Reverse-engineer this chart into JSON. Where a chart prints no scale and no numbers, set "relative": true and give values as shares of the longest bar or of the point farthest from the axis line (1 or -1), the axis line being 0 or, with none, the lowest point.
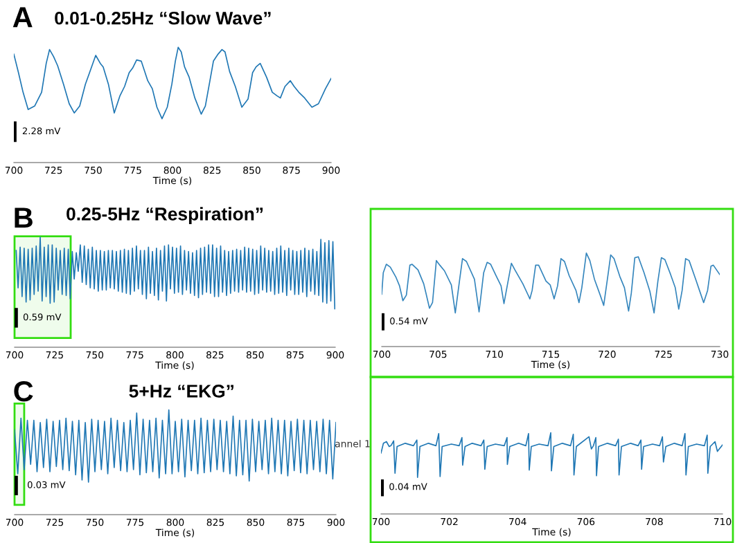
{
  "chart_data": [
    {
      "type": "line",
      "title": "0.01-0.25Hz “Slow Wave”",
      "xlabel": "Time (s)",
      "relative": true,
      "xlim": [
        700,
        900
      ],
      "xticks": [
        700,
        725,
        750,
        775,
        800,
        825,
        850,
        875,
        900
      ],
      "annotations": [
        "A",
        "2.28 mV"
      ],
      "x": [
        700,
        702.9,
        705.8,
        709.0,
        713.1,
        717.5,
        720.4,
        722.5,
        725.0,
        727.6,
        731.3,
        734.9,
        738.1,
        741.5,
        745.1,
        748.0,
        751.6,
        754.5,
        756.3,
        759.6,
        763.3,
        766.9,
        769.8,
        772.7,
        774.9,
        777.4,
        780.3,
        784.4,
        787.3,
        790.2,
        793.4,
        796.7,
        799.6,
        801.8,
        803.6,
        805.5,
        807.6,
        810.5,
        814.1,
        818.1,
        820.7,
        823.6,
        825.8,
        828.7,
        831.2,
        833.1,
        836.0,
        839.6,
        843.7,
        847.6,
        850.5,
        852.7,
        855.3,
        859.3,
        862.9,
        865.8,
        868.0,
        870.9,
        874.3,
        876.7,
        879.6,
        883.3,
        887.9,
        892.0,
        896.4,
        900
      ],
      "series": [
        {
          "color": "#1f77b4",
          "values": [
            0.94,
            0.78,
            0.61,
            0.46,
            0.49,
            0.61,
            0.86,
            0.98,
            0.92,
            0.84,
            0.68,
            0.51,
            0.43,
            0.49,
            0.68,
            0.79,
            0.93,
            0.86,
            0.83,
            0.68,
            0.43,
            0.58,
            0.66,
            0.78,
            0.82,
            0.89,
            0.88,
            0.71,
            0.64,
            0.48,
            0.38,
            0.48,
            0.68,
            0.88,
            1.0,
            0.96,
            0.83,
            0.74,
            0.56,
            0.42,
            0.49,
            0.71,
            0.88,
            0.94,
            0.98,
            0.96,
            0.79,
            0.66,
            0.48,
            0.55,
            0.78,
            0.83,
            0.86,
            0.74,
            0.61,
            0.58,
            0.56,
            0.66,
            0.71,
            0.66,
            0.61,
            0.56,
            0.48,
            0.51,
            0.64,
            0.73
          ]
        }
      ]
    },
    {
      "type": "line",
      "title": "0.25-5Hz “Respiration”",
      "xlabel": "Time (s)",
      "relative": true,
      "xlim": [
        700,
        900
      ],
      "xticks": [
        700,
        725,
        750,
        775,
        800,
        825,
        850,
        875,
        900
      ],
      "annotations": [
        "B",
        "0.59 mV"
      ],
      "bands": [
        {
          "axis": "x",
          "from": 700,
          "to": 735,
          "color": "#33dd11"
        }
      ],
      "x": [
        701,
        702.2,
        703.5,
        704.7,
        706,
        707.2,
        708.5,
        709.7,
        711,
        712.2,
        713.5,
        714.7,
        716,
        717.2,
        718.5,
        719.7,
        721,
        722.2,
        723.5,
        724.7,
        726,
        727.2,
        728.5,
        729.7,
        731,
        732.2,
        733.5,
        734.7,
        736,
        737.2,
        738.5,
        739.7,
        741,
        742.2,
        743.5,
        744.7,
        746,
        747.2,
        748.5,
        749.7,
        751,
        752.2,
        753.5,
        754.7,
        756,
        757.2,
        758.5,
        759.7,
        761,
        762.2,
        763.5,
        764.7,
        766,
        767.2,
        768.5,
        769.7,
        771,
        772.2,
        773.5,
        774.7,
        776,
        777.2,
        778.5,
        779.7,
        781,
        782.2,
        783.5,
        784.7,
        786,
        787.2,
        788.5,
        789.7,
        791,
        792.2,
        793.5,
        794.7,
        796,
        797.2,
        798.5,
        799.7,
        801,
        802.2,
        803.5,
        804.7,
        806,
        807.2,
        808.5,
        809.7,
        811,
        812.2,
        813.5,
        814.7,
        816,
        817.2,
        818.5,
        819.7,
        821,
        822.2,
        823.5,
        824.7,
        826,
        827.2,
        828.5,
        829.7,
        831,
        832.2,
        833.5,
        834.7,
        836,
        837.2,
        838.5,
        839.7,
        841,
        842.2,
        843.5,
        844.7,
        846,
        847.2,
        848.5,
        849.7,
        851,
        852.2,
        853.5,
        854.7,
        856,
        857.2,
        858.5,
        859.7,
        861,
        862.2,
        863.5,
        864.7,
        866,
        867.2,
        868.5,
        869.7,
        871,
        872.2,
        873.5,
        874.7,
        876,
        877.2,
        878.5,
        879.7,
        881,
        882.2,
        883.5,
        884.7,
        886,
        887.2,
        888.5,
        889.7,
        891,
        892.2,
        893.5,
        894.7,
        896,
        897.2,
        898.5,
        899.7
      ],
      "series": [
        {
          "color": "#1f77b4",
          "values": [
            0.88,
            0.54,
            0.91,
            0.46,
            0.9,
            0.41,
            0.89,
            0.43,
            0.9,
            0.48,
            0.92,
            0.51,
            1.0,
            0.42,
            0.91,
            0.46,
            0.93,
            0.4,
            0.93,
            0.41,
            0.9,
            0.52,
            0.88,
            0.48,
            0.9,
            0.47,
            0.89,
            0.44,
            0.87,
            0.62,
            0.86,
            0.69,
            0.93,
            0.59,
            0.92,
            0.57,
            0.89,
            0.54,
            0.91,
            0.53,
            0.88,
            0.51,
            0.88,
            0.52,
            0.87,
            0.52,
            0.88,
            0.54,
            0.88,
            0.53,
            0.87,
            0.51,
            0.88,
            0.5,
            0.89,
            0.49,
            0.88,
            0.48,
            0.9,
            0.51,
            0.92,
            0.53,
            0.88,
            0.48,
            0.88,
            0.44,
            0.91,
            0.49,
            0.87,
            0.47,
            0.9,
            0.43,
            0.88,
            0.51,
            0.92,
            0.42,
            0.93,
            0.53,
            0.91,
            0.49,
            0.9,
            0.5,
            0.92,
            0.48,
            0.88,
            0.52,
            0.87,
            0.49,
            0.86,
            0.47,
            0.88,
            0.45,
            0.9,
            0.48,
            0.91,
            0.5,
            0.93,
            0.49,
            0.93,
            0.46,
            0.9,
            0.46,
            0.92,
            0.5,
            0.88,
            0.47,
            0.87,
            0.49,
            0.88,
            0.51,
            0.89,
            0.5,
            0.88,
            0.52,
            0.91,
            0.5,
            0.9,
            0.51,
            0.89,
            0.48,
            0.88,
            0.49,
            0.92,
            0.52,
            0.9,
            0.5,
            0.88,
            0.51,
            0.87,
            0.48,
            0.9,
            0.49,
            0.92,
            0.5,
            0.88,
            0.47,
            0.9,
            0.52,
            0.88,
            0.48,
            0.87,
            0.48,
            0.88,
            0.5,
            0.9,
            0.46,
            0.88,
            0.51,
            0.89,
            0.48,
            0.87,
            0.47,
            0.98,
            0.41,
            0.95,
            0.4,
            0.97,
            0.42,
            0.96,
            0.35
          ]
        }
      ]
    },
    {
      "type": "line",
      "xlabel": "Time (s)",
      "relative": true,
      "xlim": [
        700,
        730
      ],
      "xticks": [
        700,
        705,
        710,
        715,
        720,
        725,
        730
      ],
      "annotations": [
        "0.54 mV"
      ],
      "x": [
        700.0,
        700.14,
        700.41,
        700.76,
        701.27,
        701.58,
        701.88,
        702.19,
        702.5,
        702.7,
        703.22,
        703.73,
        703.93,
        704.24,
        704.51,
        704.85,
        705.16,
        705.57,
        706.18,
        706.53,
        706.9,
        707.17,
        707.52,
        708.23,
        708.64,
        709.05,
        709.36,
        709.67,
        710.18,
        710.59,
        710.85,
        711.14,
        711.51,
        711.82,
        712.53,
        713.15,
        713.35,
        713.66,
        713.93,
        714.58,
        714.95,
        715.3,
        715.61,
        715.91,
        716.22,
        716.63,
        717.24,
        717.51,
        717.76,
        718.16,
        718.47,
        718.88,
        719.39,
        719.7,
        720.11,
        720.32,
        720.62,
        721.13,
        721.54,
        721.91,
        722.15,
        722.46,
        722.77,
        723.28,
        723.8,
        724.17,
        724.51,
        724.82,
        725.13,
        725.64,
        726.05,
        726.36,
        726.66,
        726.97,
        727.28,
        727.89,
        728.2,
        728.57,
        728.92,
        729.22,
        729.43,
        730.0
      ],
      "series": [
        {
          "color": "#3586bd",
          "values": [
            0.56,
            0.79,
            0.88,
            0.85,
            0.74,
            0.65,
            0.49,
            0.55,
            0.87,
            0.88,
            0.82,
            0.67,
            0.57,
            0.41,
            0.47,
            0.92,
            0.87,
            0.81,
            0.66,
            0.36,
            0.7,
            0.94,
            0.91,
            0.72,
            0.37,
            0.79,
            0.9,
            0.88,
            0.75,
            0.65,
            0.46,
            0.65,
            0.89,
            0.82,
            0.67,
            0.51,
            0.6,
            0.87,
            0.87,
            0.7,
            0.66,
            0.51,
            0.65,
            0.94,
            0.91,
            0.76,
            0.6,
            0.47,
            0.63,
            1.0,
            0.92,
            0.72,
            0.55,
            0.44,
            0.79,
            0.98,
            0.94,
            0.75,
            0.63,
            0.38,
            0.57,
            0.95,
            0.96,
            0.79,
            0.59,
            0.36,
            0.7,
            0.95,
            0.93,
            0.77,
            0.63,
            0.4,
            0.6,
            0.94,
            0.92,
            0.71,
            0.6,
            0.47,
            0.6,
            0.86,
            0.87,
            0.77
          ]
        }
      ]
    },
    {
      "type": "line",
      "title": "5+Hz “EKG”",
      "xlabel": "Time (s)",
      "relative": true,
      "xlim": [
        700,
        900
      ],
      "xticks": [
        700,
        725,
        750,
        775,
        800,
        825,
        850,
        875,
        900
      ],
      "annotations": [
        "C",
        "0.03 mV",
        "annel 1"
      ],
      "bands": [
        {
          "axis": "x",
          "from": 700,
          "to": 706,
          "color": "#33dd11"
        }
      ],
      "x": [
        700,
        702,
        704,
        706,
        708,
        710,
        712,
        714,
        716,
        718,
        720,
        722,
        724,
        726,
        728,
        730,
        732,
        734,
        736,
        738,
        740,
        742,
        744,
        746,
        748,
        750,
        752,
        754,
        756,
        758,
        760,
        762,
        764,
        766,
        768,
        770,
        772,
        774,
        776,
        778,
        780,
        782,
        784,
        786,
        788,
        790,
        792,
        794,
        796,
        798,
        800,
        802,
        804,
        806,
        808,
        810,
        812,
        814,
        816,
        818,
        820,
        822,
        824,
        826,
        828,
        830,
        832,
        834,
        836,
        838,
        840,
        842,
        844,
        846,
        848,
        850,
        852,
        854,
        856,
        858,
        860,
        862,
        864,
        866,
        868,
        870,
        872,
        874,
        876,
        878,
        880,
        882,
        884,
        886,
        888,
        890,
        892,
        894,
        896,
        898,
        900
      ],
      "series": [
        {
          "color": "#1f77b4",
          "values": [
            0.81,
            0.39,
            0.92,
            0.43,
            0.9,
            0.48,
            0.9,
            0.41,
            0.88,
            0.45,
            0.91,
            0.41,
            0.89,
            0.46,
            0.9,
            0.43,
            0.92,
            0.42,
            0.89,
            0.38,
            0.9,
            0.33,
            0.88,
            0.31,
            0.91,
            0.41,
            0.9,
            0.43,
            0.89,
            0.39,
            0.92,
            0.45,
            0.9,
            0.42,
            0.88,
            0.41,
            0.9,
            0.43,
            0.97,
            0.38,
            0.91,
            0.4,
            0.9,
            0.41,
            0.92,
            0.35,
            0.9,
            0.39,
            1.0,
            0.39,
            0.89,
            0.41,
            0.91,
            0.36,
            0.9,
            0.42,
            0.9,
            0.39,
            0.92,
            0.4,
            0.9,
            0.41,
            0.91,
            0.43,
            0.9,
            0.41,
            0.89,
            0.39,
            0.94,
            0.37,
            0.9,
            0.38,
            0.9,
            0.32,
            0.91,
            0.41,
            0.89,
            0.43,
            0.9,
            0.39,
            0.92,
            0.41,
            0.9,
            0.39,
            0.9,
            0.37,
            0.89,
            0.42,
            0.91,
            0.4,
            0.9,
            0.39,
            0.9,
            0.43,
            0.89,
            0.41,
            0.91,
            0.39,
            0.9,
            0.34,
            0.88
          ]
        }
      ]
    },
    {
      "type": "line",
      "xlabel": "Time (s)",
      "relative": true,
      "xlim": [
        700,
        710
      ],
      "xticks": [
        700,
        702,
        704,
        706,
        708,
        710
      ],
      "annotations": [
        "0.04 mV"
      ],
      "x": [
        700.0,
        700.07,
        700.16,
        700.24,
        700.29,
        700.37,
        700.41,
        700.47,
        700.71,
        700.95,
        701.05,
        701.07,
        701.14,
        701.39,
        701.61,
        701.69,
        701.73,
        701.79,
        702.06,
        702.29,
        702.37,
        702.39,
        702.46,
        702.67,
        702.93,
        703.01,
        703.04,
        703.11,
        703.35,
        703.61,
        703.69,
        703.7,
        703.77,
        704.03,
        704.24,
        704.32,
        704.34,
        704.4,
        704.63,
        704.89,
        704.97,
        704.99,
        705.06,
        705.31,
        705.55,
        705.63,
        705.65,
        705.72,
        706.09,
        706.16,
        706.22,
        706.29,
        706.31,
        706.37,
        706.63,
        706.87,
        706.95,
        706.97,
        707.04,
        707.31,
        707.53,
        707.61,
        707.63,
        707.69,
        707.95,
        708.16,
        708.24,
        708.27,
        708.34,
        708.59,
        708.82,
        708.9,
        708.93,
        709.0,
        709.24,
        709.47,
        709.55,
        709.57,
        709.64,
        709.78,
        709.85,
        710.0
      ],
      "series": [
        {
          "color": "#1f77b4",
          "values": [
            0.75,
            0.87,
            0.89,
            0.83,
            0.84,
            0.9,
            0.5,
            0.83,
            0.87,
            0.84,
            0.91,
            0.45,
            0.83,
            0.87,
            0.84,
            0.99,
            0.46,
            0.83,
            0.86,
            0.84,
            0.94,
            0.6,
            0.83,
            0.87,
            0.84,
            0.91,
            0.55,
            0.83,
            0.86,
            0.84,
            0.94,
            0.61,
            0.83,
            0.87,
            0.84,
            0.99,
            0.54,
            0.83,
            0.86,
            0.84,
            1.0,
            0.53,
            0.83,
            0.87,
            0.84,
            0.98,
            0.48,
            0.83,
            0.95,
            0.8,
            0.84,
            0.94,
            0.47,
            0.83,
            0.87,
            0.84,
            0.92,
            0.48,
            0.83,
            0.87,
            0.84,
            0.91,
            0.55,
            0.83,
            0.86,
            0.84,
            0.95,
            0.64,
            0.83,
            0.87,
            0.84,
            0.99,
            0.48,
            0.83,
            0.86,
            0.84,
            0.97,
            0.5,
            0.83,
            0.89,
            0.77,
            0.85
          ]
        }
      ]
    }
  ]
}
